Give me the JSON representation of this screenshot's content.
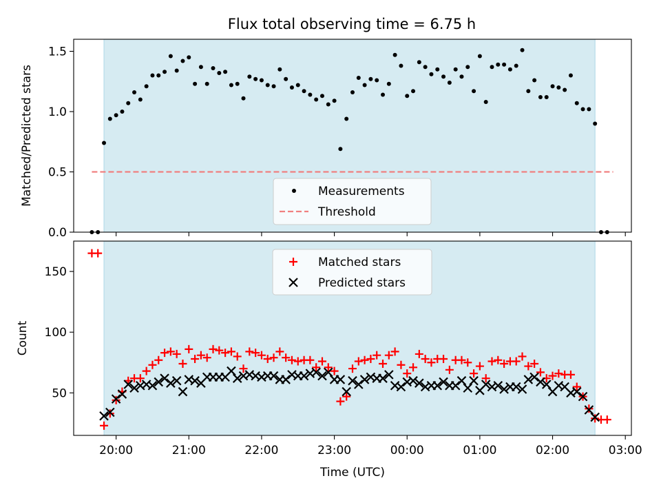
{
  "colors": {
    "span": "#add8e6",
    "measure": "#000000",
    "threshold": "#f08080",
    "matched": "#ff0000",
    "predicted": "#000000"
  },
  "chart_data": [
    {
      "type": "scatter",
      "title": "Flux total observing time = 6.75 h",
      "xlabel": "",
      "ylabel": "Matched/Predicted stars",
      "xlim": [
        "19:25",
        "03:05"
      ],
      "ylim": [
        0,
        1.6
      ],
      "yticks": [
        0.0,
        0.5,
        1.0,
        1.5
      ],
      "ytick_labels": [
        "0.0",
        "0.5",
        "1.0",
        "1.5"
      ],
      "observing_window": [
        "19:50",
        "02:35"
      ],
      "threshold": {
        "name": "Threshold",
        "value": 0.5,
        "x": [
          "19:40",
          "02:50"
        ]
      },
      "legend": [
        "Measurements",
        "Threshold"
      ],
      "series": [
        {
          "name": "Measurements",
          "points": [
            [
              "19:40",
              0
            ],
            [
              "19:45",
              0
            ],
            [
              "19:50",
              0.74
            ],
            [
              "19:55",
              0.94
            ],
            [
              "20:00",
              0.97
            ],
            [
              "20:05",
              1.0
            ],
            [
              "20:10",
              1.07
            ],
            [
              "20:15",
              1.16
            ],
            [
              "20:20",
              1.1
            ],
            [
              "20:25",
              1.21
            ],
            [
              "20:30",
              1.3
            ],
            [
              "20:35",
              1.3
            ],
            [
              "20:40",
              1.33
            ],
            [
              "20:45",
              1.46
            ],
            [
              "20:50",
              1.34
            ],
            [
              "20:55",
              1.42
            ],
            [
              "21:00",
              1.45
            ],
            [
              "21:05",
              1.23
            ],
            [
              "21:10",
              1.37
            ],
            [
              "21:15",
              1.23
            ],
            [
              "21:20",
              1.36
            ],
            [
              "21:25",
              1.32
            ],
            [
              "21:30",
              1.33
            ],
            [
              "21:35",
              1.22
            ],
            [
              "21:40",
              1.23
            ],
            [
              "21:45",
              1.11
            ],
            [
              "21:50",
              1.29
            ],
            [
              "21:55",
              1.27
            ],
            [
              "22:00",
              1.26
            ],
            [
              "22:05",
              1.22
            ],
            [
              "22:10",
              1.21
            ],
            [
              "22:15",
              1.35
            ],
            [
              "22:20",
              1.27
            ],
            [
              "22:25",
              1.2
            ],
            [
              "22:30",
              1.22
            ],
            [
              "22:35",
              1.17
            ],
            [
              "22:40",
              1.14
            ],
            [
              "22:45",
              1.1
            ],
            [
              "22:50",
              1.13
            ],
            [
              "22:55",
              1.06
            ],
            [
              "23:00",
              1.09
            ],
            [
              "23:05",
              0.69
            ],
            [
              "23:10",
              0.94
            ],
            [
              "23:15",
              1.16
            ],
            [
              "23:20",
              1.28
            ],
            [
              "23:25",
              1.22
            ],
            [
              "23:30",
              1.27
            ],
            [
              "23:35",
              1.26
            ],
            [
              "23:40",
              1.14
            ],
            [
              "23:45",
              1.23
            ],
            [
              "23:50",
              1.47
            ],
            [
              "23:55",
              1.38
            ],
            [
              "00:00",
              1.13
            ],
            [
              "00:05",
              1.17
            ],
            [
              "00:10",
              1.41
            ],
            [
              "00:15",
              1.37
            ],
            [
              "00:20",
              1.31
            ],
            [
              "00:25",
              1.35
            ],
            [
              "00:30",
              1.29
            ],
            [
              "00:35",
              1.24
            ],
            [
              "00:40",
              1.35
            ],
            [
              "00:45",
              1.29
            ],
            [
              "00:50",
              1.37
            ],
            [
              "00:55",
              1.17
            ],
            [
              "01:00",
              1.46
            ],
            [
              "01:05",
              1.08
            ],
            [
              "01:10",
              1.37
            ],
            [
              "01:15",
              1.39
            ],
            [
              "01:20",
              1.39
            ],
            [
              "01:25",
              1.35
            ],
            [
              "01:30",
              1.38
            ],
            [
              "01:35",
              1.51
            ],
            [
              "01:40",
              1.17
            ],
            [
              "01:45",
              1.26
            ],
            [
              "01:50",
              1.12
            ],
            [
              "01:55",
              1.12
            ],
            [
              "02:00",
              1.21
            ],
            [
              "02:05",
              1.2
            ],
            [
              "02:10",
              1.18
            ],
            [
              "02:15",
              1.3
            ],
            [
              "02:20",
              1.07
            ],
            [
              "02:25",
              1.02
            ],
            [
              "02:30",
              1.02
            ],
            [
              "02:35",
              0.9
            ],
            [
              "02:40",
              0
            ],
            [
              "02:45",
              0
            ]
          ]
        }
      ]
    },
    {
      "type": "scatter",
      "title": "",
      "xlabel": "Time (UTC)",
      "ylabel": "Count",
      "xlim": [
        "19:25",
        "03:05"
      ],
      "ylim": [
        15,
        175
      ],
      "yticks": [
        50,
        100,
        150
      ],
      "ytick_labels": [
        "50",
        "100",
        "150"
      ],
      "x_tick_labels": [
        "20:00",
        "21:00",
        "22:00",
        "23:00",
        "00:00",
        "01:00",
        "02:00",
        "03:00"
      ],
      "observing_window": [
        "19:50",
        "02:35"
      ],
      "legend": [
        "Matched stars",
        "Predicted stars"
      ],
      "series": [
        {
          "name": "Matched stars",
          "marker": "+",
          "points": [
            [
              "19:40",
              165
            ],
            [
              "19:45",
              165
            ],
            [
              "19:50",
              23
            ],
            [
              "19:55",
              33
            ],
            [
              "20:00",
              44
            ],
            [
              "20:05",
              51
            ],
            [
              "20:10",
              60
            ],
            [
              "20:15",
              62
            ],
            [
              "20:20",
              62
            ],
            [
              "20:25",
              68
            ],
            [
              "20:30",
              73
            ],
            [
              "20:35",
              77
            ],
            [
              "20:40",
              83
            ],
            [
              "20:45",
              84
            ],
            [
              "20:50",
              82
            ],
            [
              "20:55",
              74
            ],
            [
              "21:00",
              86
            ],
            [
              "21:05",
              78
            ],
            [
              "21:10",
              81
            ],
            [
              "21:15",
              79
            ],
            [
              "21:20",
              86
            ],
            [
              "21:25",
              85
            ],
            [
              "21:30",
              83
            ],
            [
              "21:35",
              84
            ],
            [
              "21:40",
              80
            ],
            [
              "21:45",
              70
            ],
            [
              "21:50",
              84
            ],
            [
              "21:55",
              83
            ],
            [
              "22:00",
              81
            ],
            [
              "22:05",
              78
            ],
            [
              "22:10",
              79
            ],
            [
              "22:15",
              84
            ],
            [
              "22:20",
              79
            ],
            [
              "22:25",
              77
            ],
            [
              "22:30",
              76
            ],
            [
              "22:35",
              77
            ],
            [
              "22:40",
              77
            ],
            [
              "22:45",
              71
            ],
            [
              "22:50",
              76
            ],
            [
              "22:55",
              71
            ],
            [
              "23:00",
              68
            ],
            [
              "23:05",
              43
            ],
            [
              "23:10",
              47
            ],
            [
              "23:15",
              70
            ],
            [
              "23:20",
              76
            ],
            [
              "23:25",
              77
            ],
            [
              "23:30",
              78
            ],
            [
              "23:35",
              81
            ],
            [
              "23:40",
              74
            ],
            [
              "23:45",
              81
            ],
            [
              "23:50",
              84
            ],
            [
              "23:55",
              73
            ],
            [
              "00:00",
              66
            ],
            [
              "00:05",
              71
            ],
            [
              "00:10",
              82
            ],
            [
              "00:15",
              78
            ],
            [
              "00:20",
              75
            ],
            [
              "00:25",
              78
            ],
            [
              "00:30",
              78
            ],
            [
              "00:35",
              69
            ],
            [
              "00:40",
              77
            ],
            [
              "00:45",
              77
            ],
            [
              "00:50",
              75
            ],
            [
              "00:55",
              66
            ],
            [
              "01:00",
              72
            ],
            [
              "01:05",
              62
            ],
            [
              "01:10",
              76
            ],
            [
              "01:15",
              77
            ],
            [
              "01:20",
              74
            ],
            [
              "01:25",
              76
            ],
            [
              "01:30",
              76
            ],
            [
              "01:35",
              80
            ],
            [
              "01:40",
              72
            ],
            [
              "01:45",
              74
            ],
            [
              "01:50",
              67
            ],
            [
              "01:55",
              62
            ],
            [
              "02:00",
              64
            ],
            [
              "02:05",
              66
            ],
            [
              "02:10",
              65
            ],
            [
              "02:15",
              65
            ],
            [
              "02:20",
              55
            ],
            [
              "02:25",
              47
            ],
            [
              "02:30",
              37
            ],
            [
              "02:35",
              29
            ],
            [
              "02:40",
              28
            ],
            [
              "02:45",
              28
            ]
          ]
        },
        {
          "name": "Predicted stars",
          "marker": "x",
          "points": [
            [
              "19:50",
              31
            ],
            [
              "19:55",
              34
            ],
            [
              "20:00",
              45
            ],
            [
              "20:05",
              49
            ],
            [
              "20:10",
              57
            ],
            [
              "20:15",
              54
            ],
            [
              "20:20",
              56
            ],
            [
              "20:25",
              57
            ],
            [
              "20:30",
              56
            ],
            [
              "20:35",
              59
            ],
            [
              "20:40",
              62
            ],
            [
              "20:45",
              58
            ],
            [
              "20:50",
              60
            ],
            [
              "20:55",
              51
            ],
            [
              "21:00",
              61
            ],
            [
              "21:05",
              60
            ],
            [
              "21:10",
              58
            ],
            [
              "21:15",
              63
            ],
            [
              "21:20",
              63
            ],
            [
              "21:25",
              63
            ],
            [
              "21:30",
              63
            ],
            [
              "21:35",
              68
            ],
            [
              "21:40",
              62
            ],
            [
              "21:45",
              64
            ],
            [
              "21:50",
              65
            ],
            [
              "21:55",
              64
            ],
            [
              "22:00",
              63
            ],
            [
              "22:05",
              64
            ],
            [
              "22:10",
              64
            ],
            [
              "22:15",
              61
            ],
            [
              "22:20",
              61
            ],
            [
              "22:25",
              65
            ],
            [
              "22:30",
              64
            ],
            [
              "22:35",
              64
            ],
            [
              "22:40",
              66
            ],
            [
              "22:45",
              67
            ],
            [
              "22:50",
              64
            ],
            [
              "22:55",
              67
            ],
            [
              "23:00",
              61
            ],
            [
              "23:05",
              61
            ],
            [
              "23:10",
              51
            ],
            [
              "23:15",
              60
            ],
            [
              "23:20",
              57
            ],
            [
              "23:25",
              61
            ],
            [
              "23:30",
              63
            ],
            [
              "23:35",
              62
            ],
            [
              "23:40",
              62
            ],
            [
              "23:45",
              65
            ],
            [
              "23:50",
              56
            ],
            [
              "23:55",
              55
            ],
            [
              "00:00",
              59
            ],
            [
              "00:05",
              60
            ],
            [
              "00:10",
              58
            ],
            [
              "00:15",
              55
            ],
            [
              "00:20",
              56
            ],
            [
              "00:25",
              56
            ],
            [
              "00:30",
              59
            ],
            [
              "00:35",
              56
            ],
            [
              "00:40",
              56
            ],
            [
              "00:45",
              60
            ],
            [
              "00:50",
              54
            ],
            [
              "00:55",
              60
            ],
            [
              "01:00",
              52
            ],
            [
              "01:05",
              57
            ],
            [
              "01:10",
              55
            ],
            [
              "01:15",
              56
            ],
            [
              "01:20",
              53
            ],
            [
              "01:25",
              55
            ],
            [
              "01:30",
              55
            ],
            [
              "01:35",
              53
            ],
            [
              "01:40",
              61
            ],
            [
              "01:45",
              63
            ],
            [
              "01:50",
              59
            ],
            [
              "01:55",
              57
            ],
            [
              "02:00",
              51
            ],
            [
              "02:05",
              56
            ],
            [
              "02:10",
              55
            ],
            [
              "02:15",
              50
            ],
            [
              "02:20",
              51
            ],
            [
              "02:25",
              47
            ],
            [
              "02:30",
              36
            ],
            [
              "02:35",
              30
            ]
          ]
        }
      ]
    }
  ]
}
